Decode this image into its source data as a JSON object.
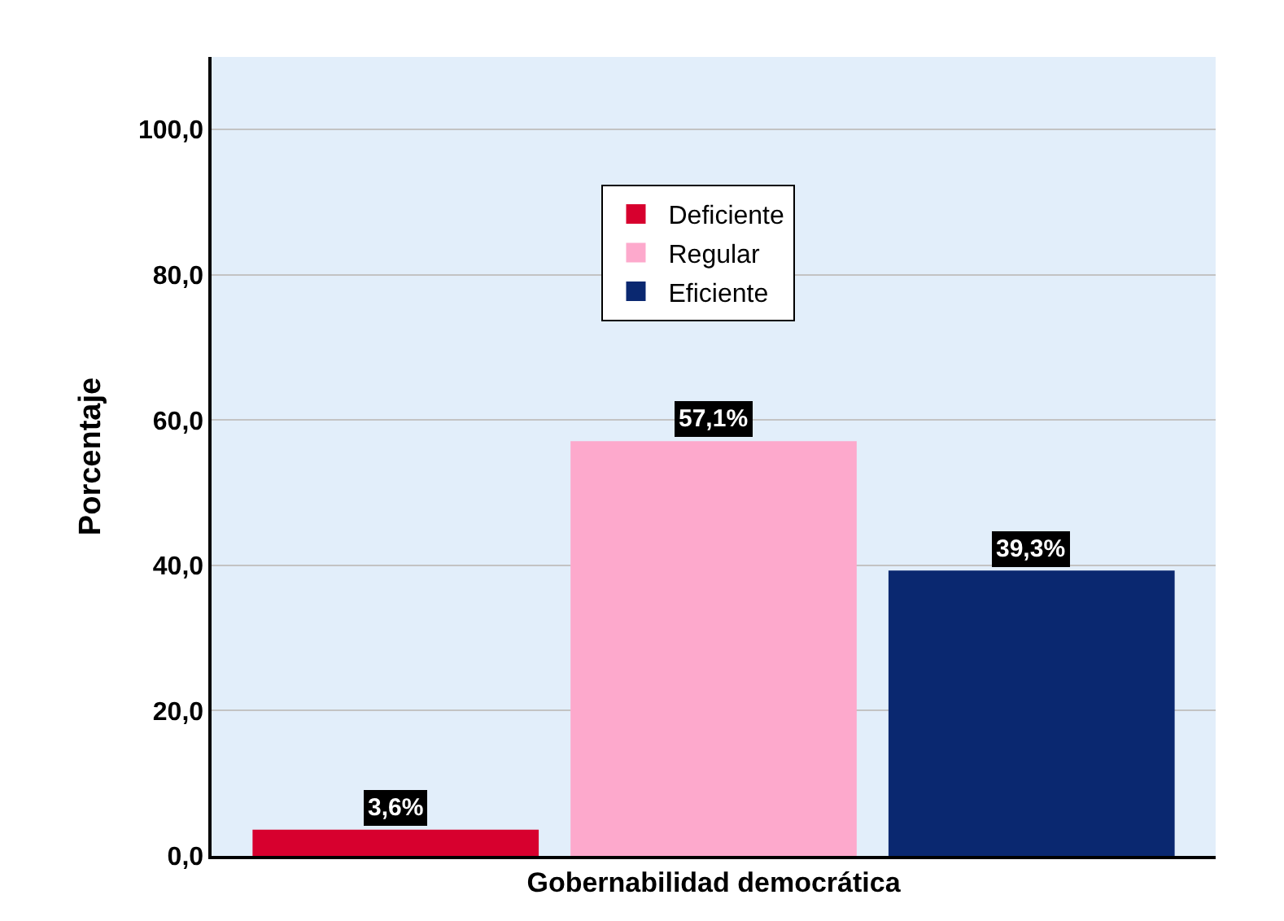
{
  "chart_data": {
    "type": "bar",
    "categories": [
      "Gobernabilidad democrática"
    ],
    "ylabel": "Porcentaje",
    "ylim": [
      0,
      110
    ],
    "yticks": [
      {
        "value": 0,
        "label": "0,0"
      },
      {
        "value": 20,
        "label": "20,0"
      },
      {
        "value": 40,
        "label": "40,0"
      },
      {
        "value": 60,
        "label": "60,0"
      },
      {
        "value": 80,
        "label": "80,0"
      },
      {
        "value": 100,
        "label": "100,0"
      }
    ],
    "grid": "y",
    "legend": "top",
    "series": [
      {
        "name": "Deficiente",
        "color": "#d7002e",
        "values": [
          3.6
        ],
        "value_labels": [
          "3,6%"
        ]
      },
      {
        "name": "Regular",
        "color": "#fda9cc",
        "values": [
          57.1
        ],
        "value_labels": [
          "57,1%"
        ]
      },
      {
        "name": "Eficiente",
        "color": "#0a2870",
        "values": [
          39.3
        ],
        "value_labels": [
          "39,3%"
        ]
      }
    ]
  }
}
